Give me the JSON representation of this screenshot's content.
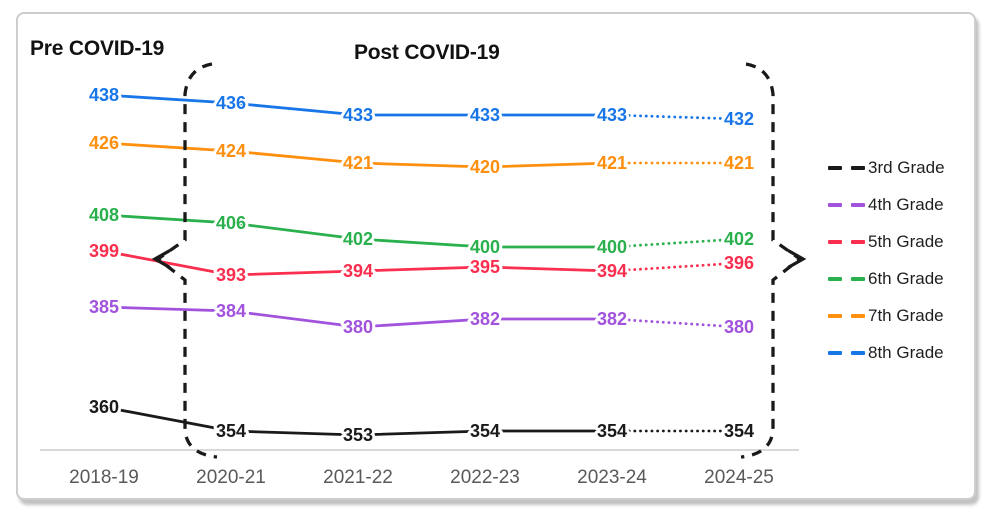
{
  "chart_data": {
    "type": "line",
    "title_pre": "Pre COVID-19",
    "title_post": "Post COVID-19",
    "categories": [
      "2018-19",
      "2020-21",
      "2021-22",
      "2022-23",
      "2023-24",
      "2024-25"
    ],
    "series": [
      {
        "name": "3rd Grade",
        "color": "#1a1a1a",
        "values": [
          360,
          354,
          353,
          354,
          354,
          354
        ]
      },
      {
        "name": "4th Grade",
        "color": "#a253dd",
        "values": [
          385,
          384,
          380,
          382,
          382,
          380
        ]
      },
      {
        "name": "5th Grade",
        "color": "#fa2e4e",
        "values": [
          399,
          393,
          394,
          395,
          394,
          396
        ]
      },
      {
        "name": "6th Grade",
        "color": "#2ab04d",
        "values": [
          408,
          406,
          402,
          400,
          400,
          402
        ]
      },
      {
        "name": "7th Grade",
        "color": "#ff8f0e",
        "values": [
          426,
          424,
          421,
          420,
          421,
          421
        ]
      },
      {
        "name": "8th Grade",
        "color": "#1976e8",
        "values": [
          438,
          436,
          433,
          433,
          433,
          432
        ]
      }
    ],
    "legend_position": "right",
    "legend_order": [
      "3rd Grade",
      "4th Grade",
      "5th Grade",
      "6th Grade",
      "7th Grade",
      "8th Grade"
    ],
    "dotted_final_segment": {
      "from": "2023-24",
      "to": "2024-25"
    },
    "annotations": {
      "pre_label": "Pre COVID-19",
      "post_label": "Post COVID-19",
      "bracket_style": "dashed curly braces with arrows spanning 2020-21 through 2024-25"
    },
    "axis": {
      "baseline_color": "#d9d9d9",
      "tick_label_color": "#595959",
      "grid": false,
      "ylim": [
        345,
        445
      ]
    }
  }
}
